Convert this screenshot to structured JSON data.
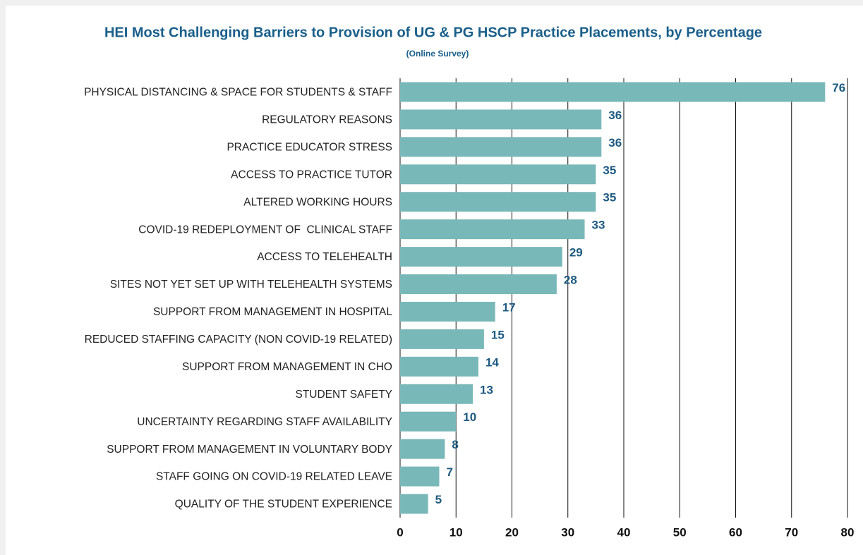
{
  "chart_data": {
    "type": "bar",
    "orientation": "horizontal",
    "title": "HEI Most Challenging Barriers to Provision of UG & PG HSCP Practice Placements, by Percentage",
    "subtitle": "(Online Survey)",
    "categories": [
      "PHYSICAL DISTANCING & SPACE FOR STUDENTS & STAFF",
      "REGULATORY REASONS",
      "PRACTICE EDUCATOR STRESS",
      "ACCESS TO PRACTICE TUTOR",
      "ALTERED WORKING HOURS",
      "COVID-19 REDEPLOYMENT OF  CLINICAL STAFF",
      "ACCESS TO TELEHEALTH",
      "SITES NOT YET SET UP WITH TELEHEALTH SYSTEMS",
      "SUPPORT FROM MANAGEMENT IN HOSPITAL",
      "REDUCED STAFFING CAPACITY (NON COVID-19 RELATED)",
      "SUPPORT FROM MANAGEMENT IN CHO",
      "STUDENT SAFETY",
      "UNCERTAINTY REGARDING STAFF AVAILABILITY",
      "SUPPORT FROM MANAGEMENT IN VOLUNTARY BODY",
      "STAFF GOING ON COVID-19 RELATED LEAVE",
      "QUALITY OF THE STUDENT EXPERIENCE"
    ],
    "values": [
      76,
      36,
      36,
      35,
      35,
      33,
      29,
      28,
      17,
      15,
      14,
      13,
      10,
      8,
      7,
      5
    ],
    "color": "#79b8b9",
    "xlim": [
      0,
      80
    ],
    "xticks": [
      0,
      10,
      20,
      30,
      40,
      50,
      60,
      70,
      80
    ],
    "grid": true
  }
}
